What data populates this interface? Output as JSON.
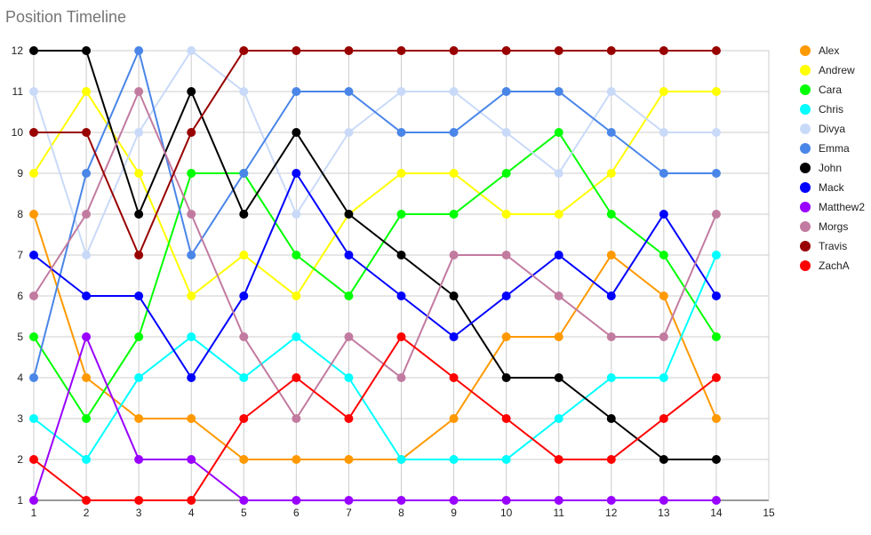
{
  "chart_data": {
    "type": "line",
    "title": "Position Timeline",
    "xlabel": "",
    "ylabel": "",
    "xlim": [
      1,
      15
    ],
    "ylim": [
      1,
      12
    ],
    "x_ticks": [
      1,
      2,
      3,
      4,
      5,
      6,
      7,
      8,
      9,
      10,
      11,
      12,
      13,
      14,
      15
    ],
    "y_ticks": [
      1,
      2,
      3,
      4,
      5,
      6,
      7,
      8,
      9,
      10,
      11,
      12
    ],
    "grid": true,
    "legend_position": "right",
    "x": [
      1,
      2,
      3,
      4,
      5,
      6,
      7,
      8,
      9,
      10,
      11,
      12,
      13,
      14
    ],
    "series": [
      {
        "name": "Alex",
        "color": "#ff9900",
        "values": [
          8,
          4,
          3,
          3,
          2,
          2,
          2,
          2,
          3,
          5,
          5,
          7,
          6,
          3
        ]
      },
      {
        "name": "Andrew",
        "color": "#ffff00",
        "values": [
          9,
          11,
          9,
          6,
          7,
          6,
          8,
          9,
          9,
          8,
          8,
          9,
          11,
          11
        ]
      },
      {
        "name": "Cara",
        "color": "#00ff00",
        "values": [
          5,
          3,
          5,
          9,
          9,
          7,
          6,
          8,
          8,
          9,
          10,
          8,
          7,
          5
        ]
      },
      {
        "name": "Chris",
        "color": "#00ffff",
        "values": [
          3,
          2,
          4,
          5,
          4,
          5,
          4,
          2,
          2,
          2,
          3,
          4,
          4,
          7
        ]
      },
      {
        "name": "Divya",
        "color": "#c9daf8",
        "values": [
          11,
          7,
          10,
          12,
          11,
          8,
          10,
          11,
          11,
          10,
          9,
          11,
          10,
          10
        ]
      },
      {
        "name": "Emma",
        "color": "#4a86e8",
        "values": [
          4,
          9,
          12,
          7,
          9,
          11,
          11,
          10,
          10,
          11,
          11,
          10,
          9,
          9
        ]
      },
      {
        "name": "John",
        "color": "#000000",
        "values": [
          12,
          12,
          8,
          11,
          8,
          10,
          8,
          7,
          6,
          4,
          4,
          3,
          2,
          2
        ]
      },
      {
        "name": "Mack",
        "color": "#0000ff",
        "values": [
          7,
          6,
          6,
          4,
          6,
          9,
          7,
          6,
          5,
          6,
          7,
          6,
          8,
          6
        ]
      },
      {
        "name": "Matthew2",
        "color": "#9900ff",
        "values": [
          1,
          5,
          2,
          2,
          1,
          1,
          1,
          1,
          1,
          1,
          1,
          1,
          1,
          1
        ]
      },
      {
        "name": "Morgs",
        "color": "#c27ba0",
        "values": [
          6,
          8,
          11,
          8,
          5,
          3,
          5,
          4,
          7,
          7,
          6,
          5,
          5,
          8
        ]
      },
      {
        "name": "Travis",
        "color": "#990000",
        "values": [
          10,
          10,
          7,
          10,
          12,
          12,
          12,
          12,
          12,
          12,
          12,
          12,
          12,
          12
        ]
      },
      {
        "name": "ZachA",
        "color": "#ff0000",
        "values": [
          2,
          1,
          1,
          1,
          3,
          4,
          3,
          5,
          4,
          3,
          2,
          2,
          3,
          4
        ]
      }
    ]
  }
}
